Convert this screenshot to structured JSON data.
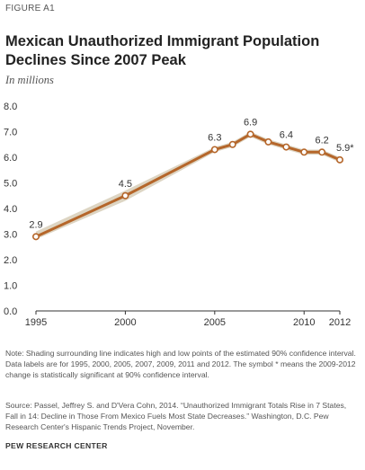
{
  "figure_label": "FIGURE A1",
  "title_line1": "Mexican Unauthorized Immigrant Population",
  "title_line2": "Declines Since 2007 Peak",
  "subtitle": "In millions",
  "chart_data": {
    "type": "line",
    "x": [
      1995,
      2000,
      2005,
      2006,
      2007,
      2008,
      2009,
      2010,
      2011,
      2012
    ],
    "series": [
      {
        "values": [
          2.9,
          4.5,
          6.3,
          6.5,
          6.9,
          6.6,
          6.4,
          6.2,
          6.2,
          5.9
        ]
      }
    ],
    "confidence_band": {
      "low": [
        2.8,
        4.3,
        6.2,
        6.4,
        6.8,
        6.5,
        6.3,
        6.1,
        6.1,
        5.8
      ],
      "high": [
        3.1,
        4.7,
        6.4,
        6.6,
        7.0,
        6.7,
        6.5,
        6.3,
        6.3,
        6.0
      ]
    },
    "data_labels": [
      {
        "x": 1995,
        "text": "2.9"
      },
      {
        "x": 2000,
        "text": "4.5"
      },
      {
        "x": 2005,
        "text": "6.3"
      },
      {
        "x": 2007,
        "text": "6.9"
      },
      {
        "x": 2009,
        "text": "6.4"
      },
      {
        "x": 2011,
        "text": "6.2"
      },
      {
        "x": 2012,
        "text": "5.9*"
      }
    ],
    "y_ticks": [
      "0.0",
      "1.0",
      "2.0",
      "3.0",
      "4.0",
      "5.0",
      "6.0",
      "7.0",
      "8.0"
    ],
    "x_ticks": [
      "1995",
      "2000",
      "2005",
      "2010",
      "2012"
    ],
    "ylim": [
      0,
      8
    ],
    "xlim": [
      1995,
      2012
    ],
    "grid": false,
    "colors": {
      "line": "#b5662a",
      "band": "#ddd5c3",
      "marker_fill": "#ffffff",
      "axis": "#333333"
    }
  },
  "note": "Note: Shading surrounding line indicates high and low points of the estimated 90% confidence interval. Data labels are for 1995, 2000, 2005, 2007, 2009, 2011 and 2012. The symbol * means the 2009-2012 change is statistically significant at 90% confidence interval.",
  "source": "Source: Passel, Jeffrey S. and D'Vera Cohn, 2014. “Unauthorized Immigrant Totals Rise in 7 States, Fall in 14: Decline in Those From Mexico Fuels Most State Decreases.” Washington, D.C. Pew Research Center's Hispanic Trends Project, November.",
  "brand": "PEW RESEARCH CENTER"
}
